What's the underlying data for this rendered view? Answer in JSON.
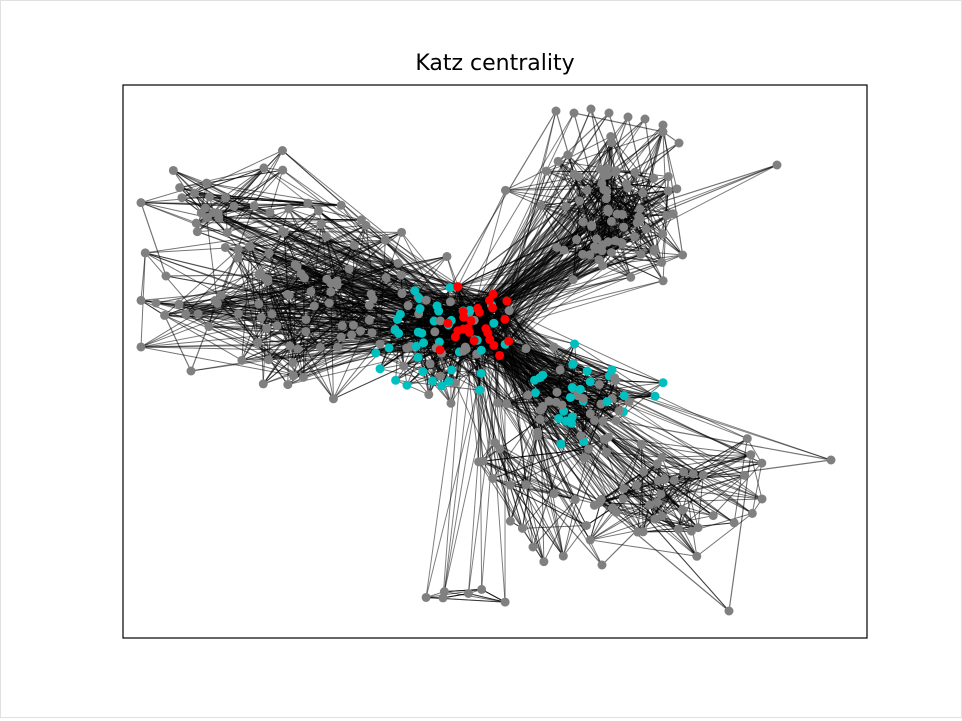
{
  "title": "Katz centrality"
}
